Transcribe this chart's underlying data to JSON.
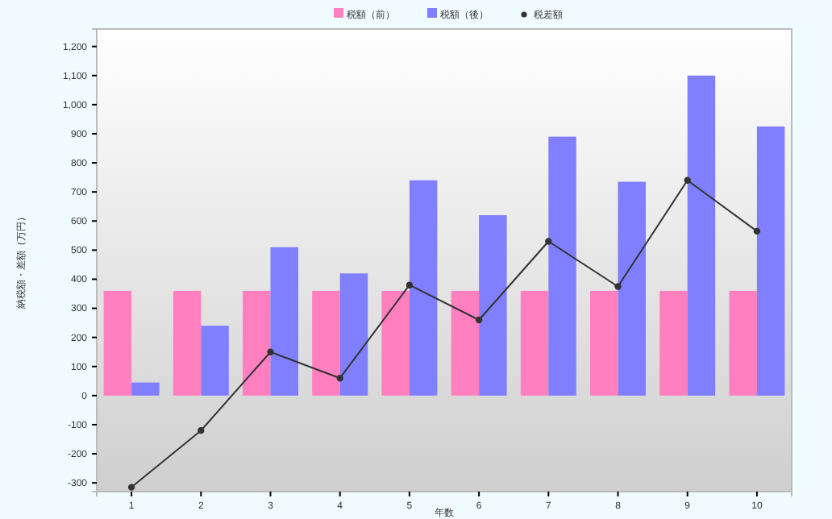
{
  "chart_data": {
    "type": "bar",
    "xlabel": "年数",
    "ylabel": "納税額・差額（万円）",
    "categories": [
      "1",
      "2",
      "3",
      "4",
      "5",
      "6",
      "7",
      "8",
      "9",
      "10"
    ],
    "series": [
      {
        "name": "税額（前）",
        "color": "#ff7fbf",
        "values": [
          360,
          360,
          360,
          360,
          360,
          360,
          360,
          360,
          360,
          360
        ]
      },
      {
        "name": "税額（後）",
        "color": "#7f7fff",
        "values": [
          45,
          240,
          510,
          420,
          740,
          620,
          890,
          735,
          1100,
          925
        ]
      },
      {
        "name": "税差額",
        "type": "line",
        "color": "#333333",
        "marker": "circle",
        "values": [
          -315,
          -120,
          150,
          60,
          380,
          260,
          530,
          375,
          740,
          565
        ]
      }
    ],
    "ylim": [
      -330,
      1260
    ],
    "yticks": [
      {
        "value": -300,
        "label": "-300"
      },
      {
        "value": -200,
        "label": "-200"
      },
      {
        "value": -100,
        "label": "-100"
      },
      0,
      100,
      200,
      300,
      400,
      500,
      600,
      700,
      800,
      900,
      {
        "value": 1000,
        "label": "1,000"
      },
      {
        "value": 1100,
        "label": "1,100"
      },
      {
        "value": 1200,
        "label": "1,200"
      }
    ],
    "legend": "top"
  }
}
